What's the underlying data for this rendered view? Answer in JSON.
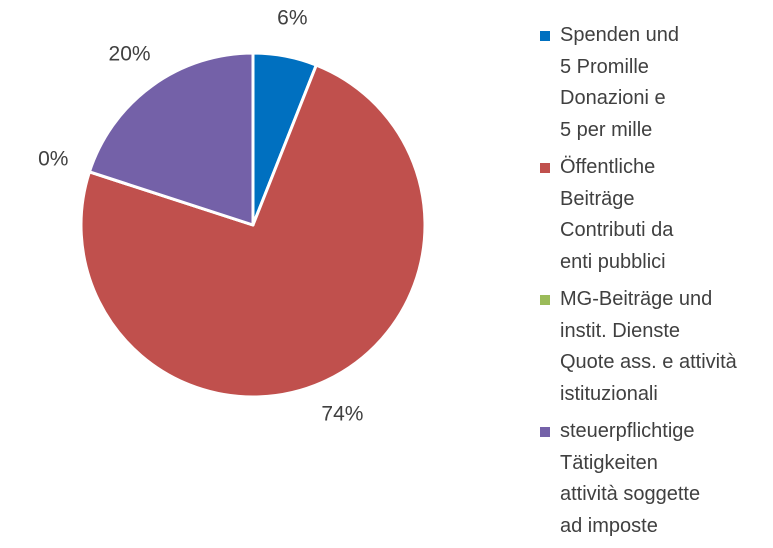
{
  "chart_data": {
    "type": "pie",
    "categories": [
      "Spenden und\n5 Promille\nDonazioni e\n5 per mille",
      "Öffentliche\nBeiträge\nContributi da\nenti pubblici",
      "MG-Beiträge und\ninstit. Dienste\nQuote ass. e attività\nistituzionali",
      "steuerpflichtige\nTätigkeiten\nattività soggette\nad imposte"
    ],
    "values": [
      6,
      74,
      0,
      20
    ],
    "value_labels": [
      "6%",
      "74%",
      "0%",
      "20%"
    ],
    "colors": [
      "#0070c0",
      "#c0504d",
      "#9bbb59",
      "#7461a8"
    ],
    "legend": "right"
  }
}
